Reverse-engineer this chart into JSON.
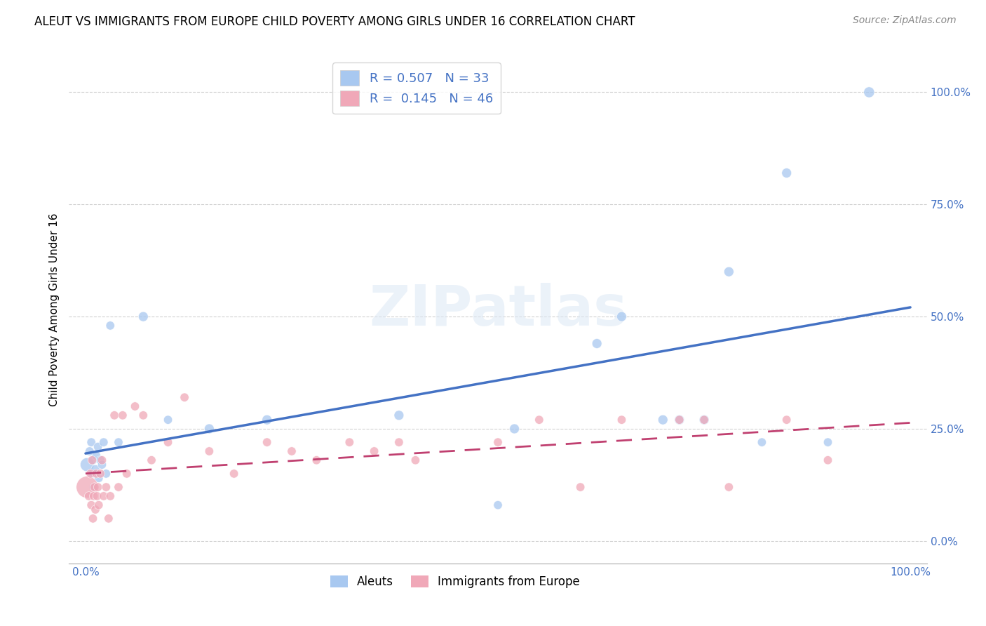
{
  "title": "ALEUT VS IMMIGRANTS FROM EUROPE CHILD POVERTY AMONG GIRLS UNDER 16 CORRELATION CHART",
  "source": "Source: ZipAtlas.com",
  "ylabel": "Child Poverty Among Girls Under 16",
  "ytick_labels": [
    "0.0%",
    "25.0%",
    "50.0%",
    "75.0%",
    "100.0%"
  ],
  "ytick_values": [
    0.0,
    0.25,
    0.5,
    0.75,
    1.0
  ],
  "xlim": [
    -0.02,
    1.02
  ],
  "ylim": [
    -0.05,
    1.08
  ],
  "aleut_R": 0.507,
  "aleut_N": 33,
  "immig_R": 0.145,
  "immig_N": 46,
  "aleut_color": "#a8c8f0",
  "aleut_line_color": "#4472c4",
  "immig_color": "#f0a8b8",
  "immig_line_color": "#c04070",
  "legend_label_aleut": "Aleuts",
  "legend_label_immig": "Immigrants from Europe",
  "aleut_x": [
    0.002,
    0.005,
    0.007,
    0.008,
    0.009,
    0.01,
    0.012,
    0.013,
    0.015,
    0.016,
    0.018,
    0.02,
    0.022,
    0.025,
    0.03,
    0.04,
    0.07,
    0.1,
    0.15,
    0.22,
    0.38,
    0.5,
    0.52,
    0.62,
    0.65,
    0.7,
    0.72,
    0.75,
    0.78,
    0.82,
    0.85,
    0.9,
    0.95
  ],
  "aleut_y": [
    0.17,
    0.2,
    0.22,
    0.15,
    0.18,
    0.12,
    0.16,
    0.19,
    0.21,
    0.14,
    0.18,
    0.17,
    0.22,
    0.15,
    0.48,
    0.22,
    0.5,
    0.27,
    0.25,
    0.27,
    0.28,
    0.08,
    0.25,
    0.44,
    0.5,
    0.27,
    0.27,
    0.27,
    0.6,
    0.22,
    0.82,
    0.22,
    1.0
  ],
  "immig_x": [
    0.002,
    0.004,
    0.006,
    0.007,
    0.008,
    0.009,
    0.01,
    0.011,
    0.012,
    0.013,
    0.014,
    0.015,
    0.016,
    0.018,
    0.02,
    0.022,
    0.025,
    0.028,
    0.03,
    0.035,
    0.04,
    0.045,
    0.05,
    0.06,
    0.07,
    0.08,
    0.1,
    0.12,
    0.15,
    0.18,
    0.22,
    0.25,
    0.28,
    0.32,
    0.35,
    0.38,
    0.4,
    0.5,
    0.55,
    0.6,
    0.65,
    0.72,
    0.75,
    0.78,
    0.85,
    0.9
  ],
  "immig_y": [
    0.12,
    0.1,
    0.15,
    0.08,
    0.18,
    0.05,
    0.1,
    0.12,
    0.07,
    0.15,
    0.1,
    0.12,
    0.08,
    0.15,
    0.18,
    0.1,
    0.12,
    0.05,
    0.1,
    0.28,
    0.12,
    0.28,
    0.15,
    0.3,
    0.28,
    0.18,
    0.22,
    0.32,
    0.2,
    0.15,
    0.22,
    0.2,
    0.18,
    0.22,
    0.2,
    0.22,
    0.18,
    0.22,
    0.27,
    0.12,
    0.27,
    0.27,
    0.27,
    0.12,
    0.27,
    0.18
  ],
  "aleut_sizes": [
    200,
    80,
    80,
    80,
    80,
    80,
    80,
    80,
    80,
    80,
    80,
    80,
    80,
    80,
    80,
    80,
    100,
    80,
    100,
    100,
    100,
    80,
    100,
    100,
    100,
    100,
    100,
    100,
    100,
    80,
    100,
    80,
    120
  ],
  "immig_sizes": [
    500,
    80,
    80,
    80,
    80,
    80,
    80,
    80,
    80,
    80,
    80,
    80,
    80,
    80,
    80,
    80,
    80,
    80,
    80,
    80,
    80,
    80,
    80,
    80,
    80,
    80,
    80,
    80,
    80,
    80,
    80,
    80,
    80,
    80,
    80,
    80,
    80,
    80,
    80,
    80,
    80,
    80,
    80,
    80,
    80,
    80
  ],
  "grid_color": "#cccccc",
  "background_color": "#ffffff",
  "tick_color": "#4472c4",
  "title_fontsize": 12,
  "source_fontsize": 10,
  "ylabel_fontsize": 11
}
